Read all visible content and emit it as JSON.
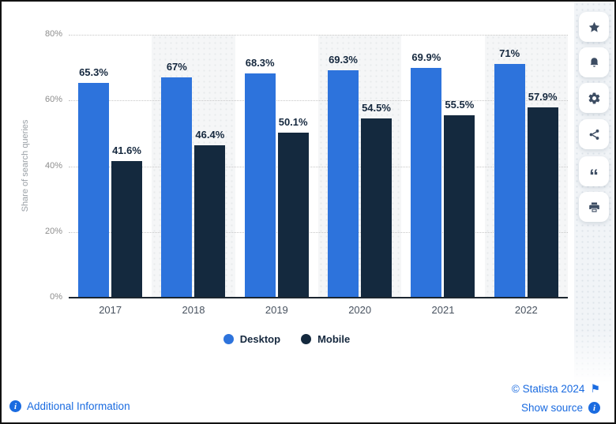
{
  "chart_data": {
    "type": "bar",
    "title": "",
    "ylabel": "Share of search queries",
    "categories": [
      "2017",
      "2018",
      "2019",
      "2020",
      "2021",
      "2022"
    ],
    "series": [
      {
        "name": "Desktop",
        "color": "#2D73DC",
        "values": [
          65.3,
          67,
          68.3,
          69.3,
          69.9,
          71
        ],
        "labels": [
          "65.3%",
          "67%",
          "68.3%",
          "69.3%",
          "69.9%",
          "71%"
        ]
      },
      {
        "name": "Mobile",
        "color": "#14293E",
        "values": [
          41.6,
          46.4,
          50.1,
          54.5,
          55.5,
          57.9
        ],
        "labels": [
          "41.6%",
          "46.4%",
          "50.1%",
          "54.5%",
          "55.5%",
          "57.9%"
        ]
      }
    ],
    "ylim": [
      0,
      80
    ],
    "yticks": [
      0,
      20,
      40,
      60,
      80
    ],
    "ytick_labels": [
      "0%",
      "20%",
      "40%",
      "60%",
      "80%"
    ],
    "grid": true,
    "legend_position": "bottom"
  },
  "sidebar": {
    "icons": [
      "star-icon",
      "bell-icon",
      "gear-icon",
      "share-icon",
      "quote-icon",
      "print-icon"
    ]
  },
  "footer": {
    "additional_info": "Additional Information",
    "copyright": "© Statista 2024",
    "show_source": "Show source",
    "link_color": "#1A6BE0"
  }
}
